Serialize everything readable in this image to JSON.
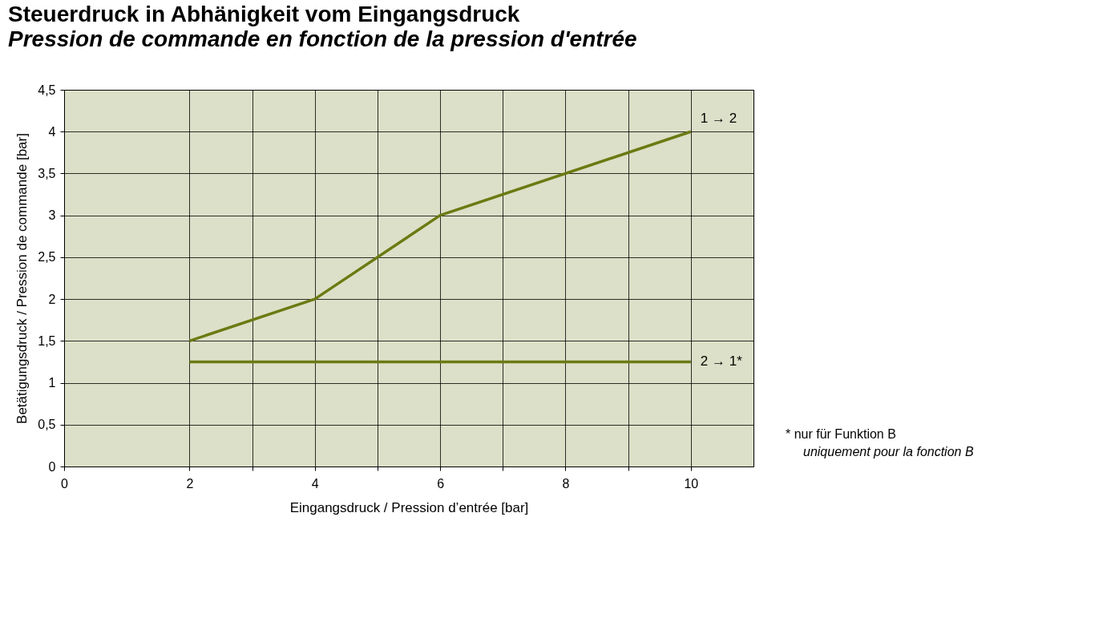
{
  "chart_data": {
    "type": "line",
    "title": "Steuerdruck in Abhänigkeit vom Eingangsdruck",
    "subtitle": "Pression de commande en fonction de la pression d'entrée",
    "xlabel": "Eingangsdruck / Pression d’entrée [bar]",
    "ylabel": "Betätigungsdruck / Pression de commande [bar]",
    "series": [
      {
        "name": "1 → 2",
        "color": "#6b7a12",
        "x": [
          2,
          4,
          6,
          10
        ],
        "values": [
          1.5,
          2,
          3,
          4
        ]
      },
      {
        "name": "2 → 1*",
        "color": "#6b7a12",
        "x": [
          2,
          10
        ],
        "values": [
          1.25,
          1.25
        ]
      }
    ],
    "xlim": [
      0,
      11
    ],
    "xticks": [
      0,
      2,
      {
        "value": 3,
        "label": null
      },
      4,
      {
        "value": 5,
        "label": null
      },
      6,
      {
        "value": 7,
        "label": null
      },
      8,
      {
        "value": 9,
        "label": null
      },
      10
    ],
    "ylim": [
      0,
      4.5
    ],
    "yticks": [
      0,
      {
        "value": 0.5,
        "label": "0,5"
      },
      1,
      {
        "value": 1.5,
        "label": "1,5"
      },
      2,
      {
        "value": 2.5,
        "label": "2,5"
      },
      3,
      {
        "value": 3.5,
        "label": "3,5"
      },
      4,
      {
        "value": 4.5,
        "label": "4,5"
      }
    ],
    "grid": true,
    "legend": false,
    "marker": "none",
    "line_style": "solid",
    "annotations": [
      "*  nur für Funktion B",
      "uniquement pour la fonction B"
    ]
  }
}
